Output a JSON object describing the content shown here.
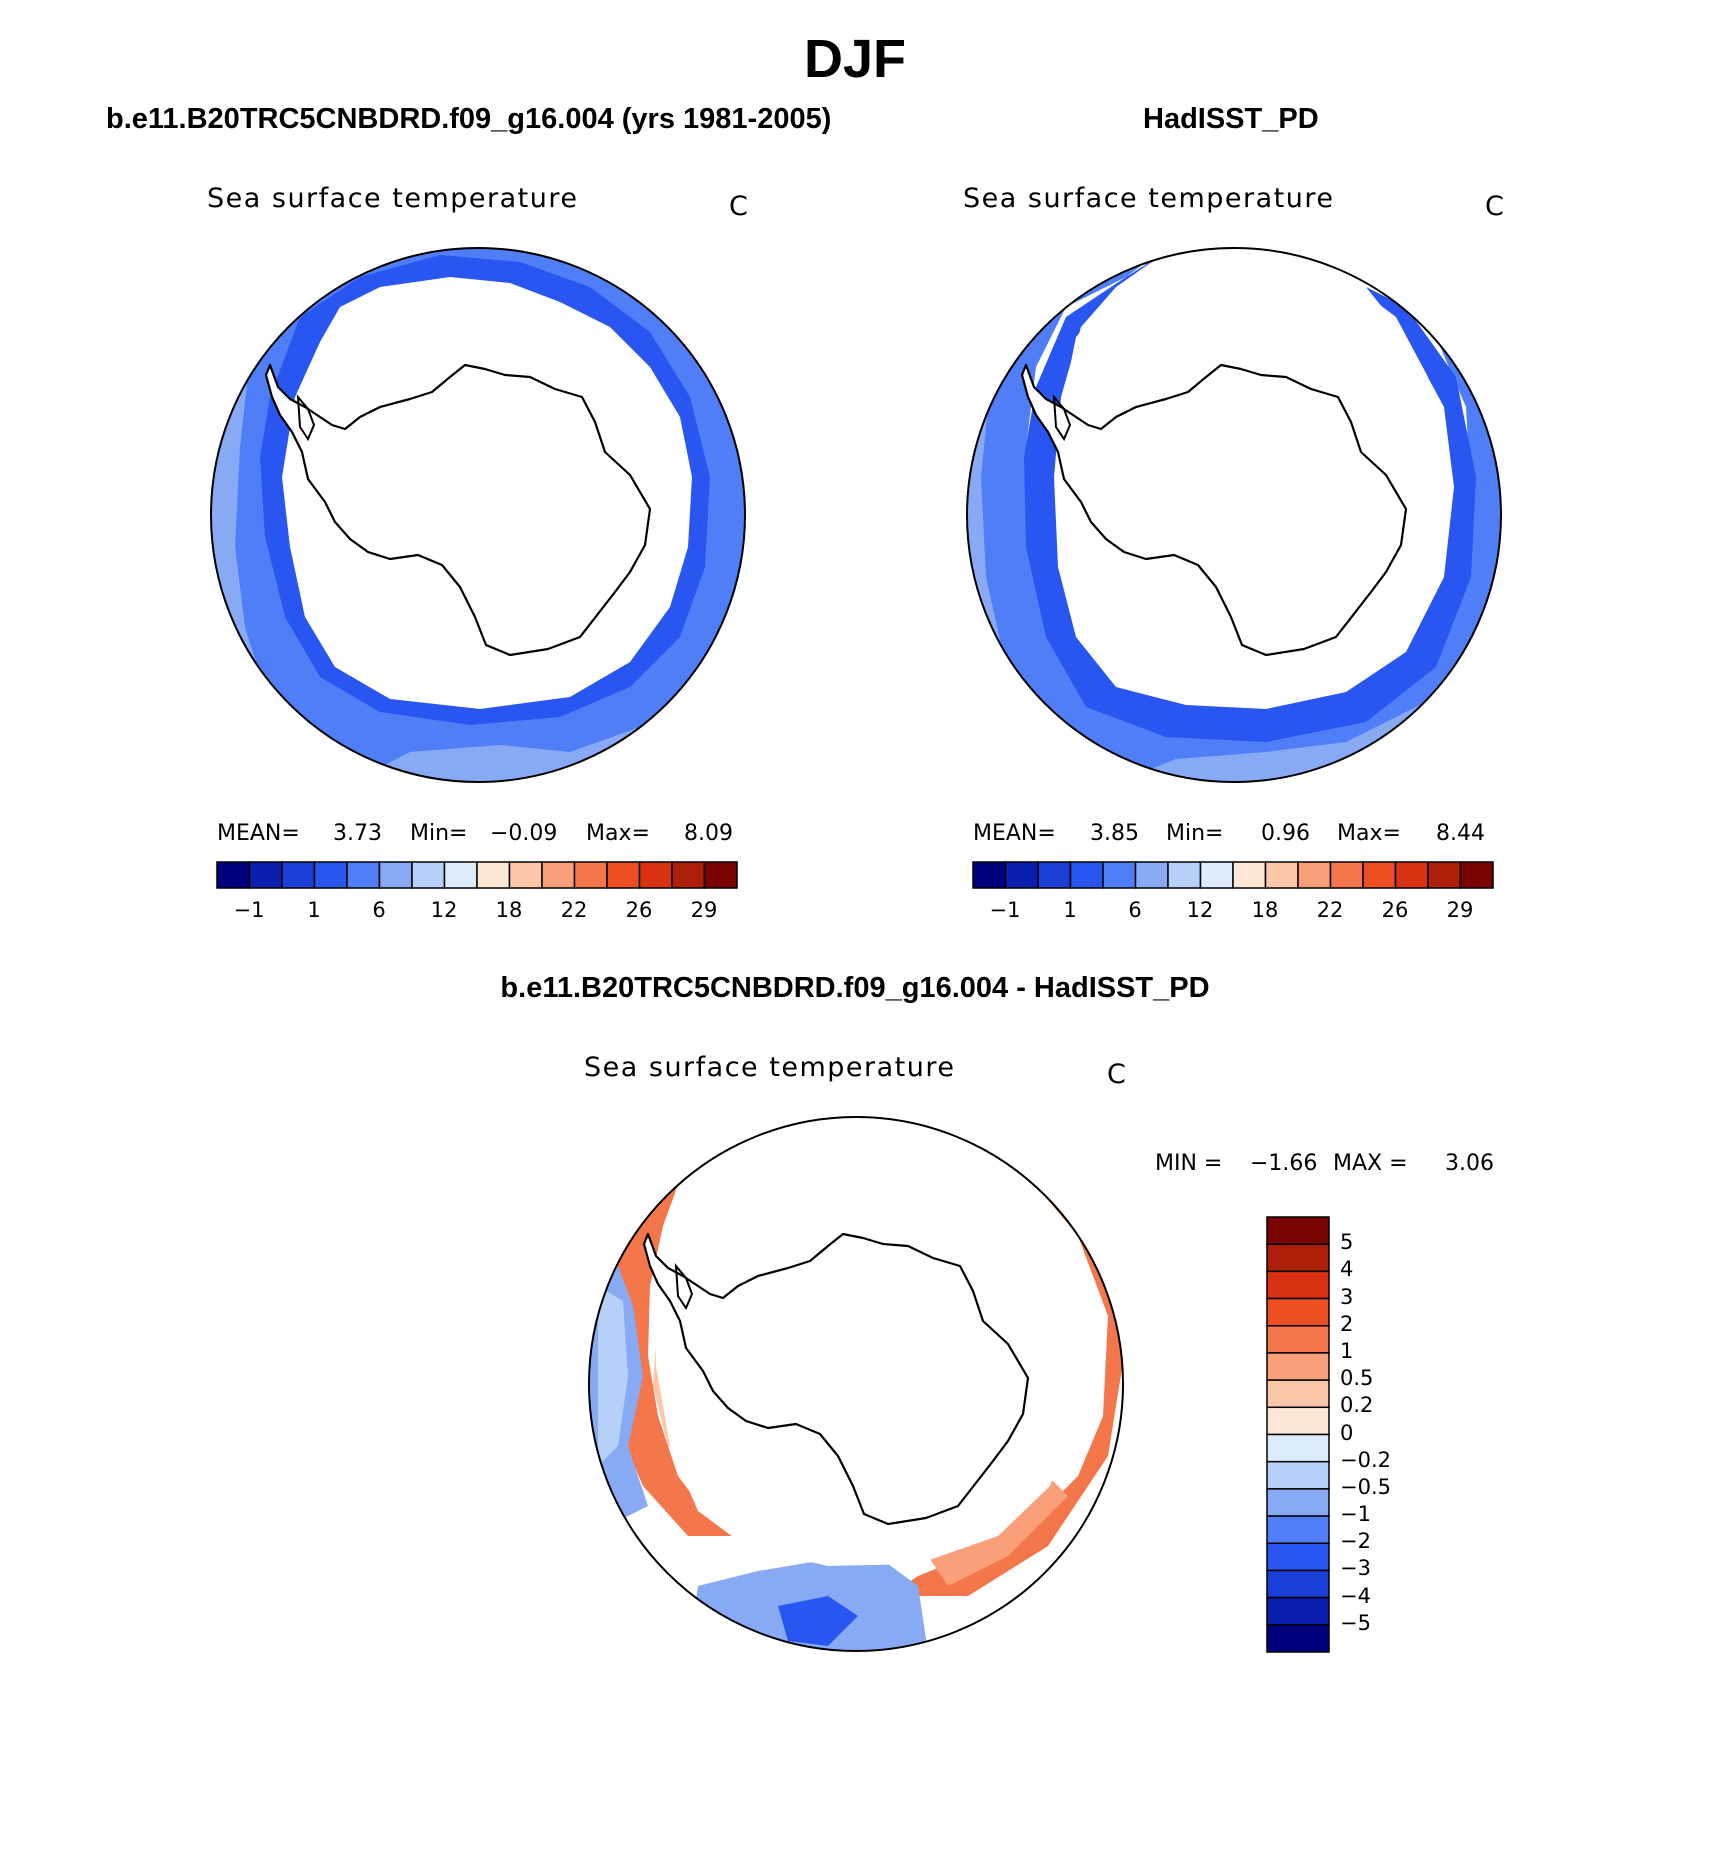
{
  "figure": {
    "season": "DJF",
    "colors": {
      "bins": [
        "#00007f",
        "#0a1fae",
        "#1a3ed6",
        "#2956f0",
        "#4f7ef7",
        "#88aaf5",
        "#b7d0fa",
        "#dcecfb",
        "#fde7d6",
        "#fcc7a8",
        "#f9a07b",
        "#f4764b",
        "#ed4f22",
        "#d83213",
        "#ad1f08",
        "#7a0402"
      ],
      "coast": "#000000",
      "land": "#ffffff"
    }
  },
  "panels": [
    {
      "case_title": "b.e11.B20TRC5CNBDRD.f09_g16.004 (yrs 1981-2005)",
      "var_title": "Sea surface temperature",
      "units": "C",
      "mean_label": "MEAN=",
      "mean": "3.73",
      "min_label": "Min=",
      "min": "−0.09",
      "max_label": "Max=",
      "max": "8.09",
      "ticks": [
        "−1",
        "1",
        "6",
        "12",
        "18",
        "22",
        "26",
        "29"
      ]
    },
    {
      "case_title": "HadISST_PD",
      "var_title": "Sea surface temperature",
      "units": "C",
      "mean_label": "MEAN=",
      "mean": "3.85",
      "min_label": "Min=",
      "min": "0.96",
      "max_label": "Max=",
      "max": "8.44",
      "ticks": [
        "−1",
        "1",
        "6",
        "12",
        "18",
        "22",
        "26",
        "29"
      ]
    }
  ],
  "diff": {
    "case_title": "b.e11.B20TRC5CNBDRD.f09_g16.004 - HadISST_PD",
    "var_title": "Sea surface temperature",
    "units": "C",
    "min_label": "MIN =",
    "min": "−1.66",
    "max_label": "MAX =",
    "max": "3.06",
    "levels": [
      "5",
      "4",
      "3",
      "2",
      "1",
      "0.5",
      "0.2",
      "0",
      "−0.2",
      "−0.5",
      "−1",
      "−2",
      "−3",
      "−4",
      "−5"
    ],
    "colors": [
      "#7a0402",
      "#ad1f08",
      "#d83213",
      "#ed4f22",
      "#f4764b",
      "#f9a07b",
      "#fcc7a8",
      "#fde7d6",
      "#dcecfb",
      "#b7d0fa",
      "#88aaf5",
      "#4f7ef7",
      "#2956f0",
      "#1a3ed6",
      "#0a1fae",
      "#00007f"
    ]
  }
}
